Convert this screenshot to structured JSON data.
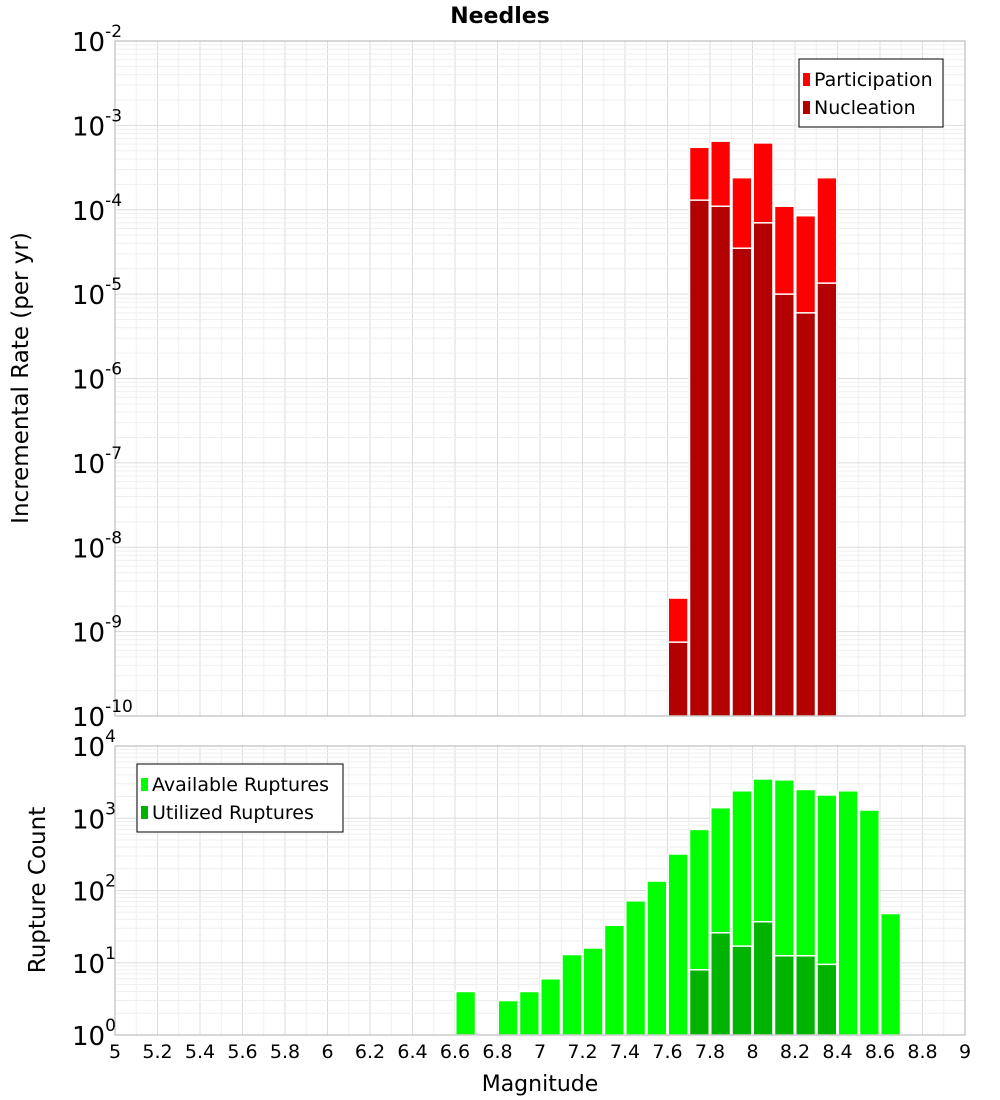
{
  "chart_data": [
    {
      "type": "bar",
      "panel": "top",
      "title": "Needles",
      "xlabel": "",
      "ylabel": "Incremental Rate (per yr)",
      "yscale": "log",
      "ylim_exp": [
        -10,
        -2
      ],
      "xlim": [
        5,
        9
      ],
      "bin_width": 0.1,
      "legend_position": "top-right",
      "series": [
        {
          "name": "Participation",
          "color": "#ff0000",
          "x": [
            7.65,
            7.75,
            7.85,
            7.95,
            8.05,
            8.15,
            8.25,
            8.35
          ],
          "values": [
            2.5e-09,
            0.00055,
            0.00065,
            0.00024,
            0.00062,
            0.00011,
            8.5e-05,
            0.00024
          ]
        },
        {
          "name": "Nucleation",
          "color": "#b30000",
          "x": [
            7.65,
            7.75,
            7.85,
            7.95,
            8.05,
            8.15,
            8.25,
            8.35
          ],
          "values": [
            7.5e-10,
            0.00013,
            0.00011,
            3.5e-05,
            7e-05,
            1e-05,
            6e-06,
            1.35e-05
          ]
        }
      ]
    },
    {
      "type": "bar",
      "panel": "bottom",
      "title": "",
      "xlabel": "Magnitude",
      "ylabel": "Rupture Count",
      "yscale": "log",
      "ylim_exp": [
        0,
        4
      ],
      "xlim": [
        5,
        9
      ],
      "bin_width": 0.1,
      "legend_position": "top-left",
      "x_tick_labels": [
        "5",
        "5.2",
        "5.4",
        "5.6",
        "5.8",
        "6",
        "6.2",
        "6.4",
        "6.6",
        "6.8",
        "7",
        "7.2",
        "7.4",
        "7.6",
        "7.8",
        "8",
        "8.2",
        "8.4",
        "8.6",
        "8.8",
        "9"
      ],
      "series": [
        {
          "name": "Available Ruptures",
          "color": "#00ff00",
          "x": [
            6.65,
            6.85,
            6.95,
            7.05,
            7.15,
            7.25,
            7.35,
            7.45,
            7.55,
            7.65,
            7.75,
            7.85,
            7.95,
            8.05,
            8.15,
            8.25,
            8.35,
            8.45,
            8.55,
            8.65
          ],
          "values": [
            4,
            3,
            4,
            6,
            13,
            16,
            33,
            72,
            135,
            320,
            700,
            1400,
            2400,
            3500,
            3400,
            2500,
            2100,
            2400,
            1300,
            48
          ]
        },
        {
          "name": "Utilized Ruptures",
          "color": "#00b300",
          "x": [
            7.65,
            7.75,
            7.85,
            7.95,
            8.05,
            8.15,
            8.25,
            8.35
          ],
          "values": [
            1,
            8,
            26,
            17,
            37,
            12.5,
            12.5,
            9.5
          ]
        }
      ]
    }
  ]
}
